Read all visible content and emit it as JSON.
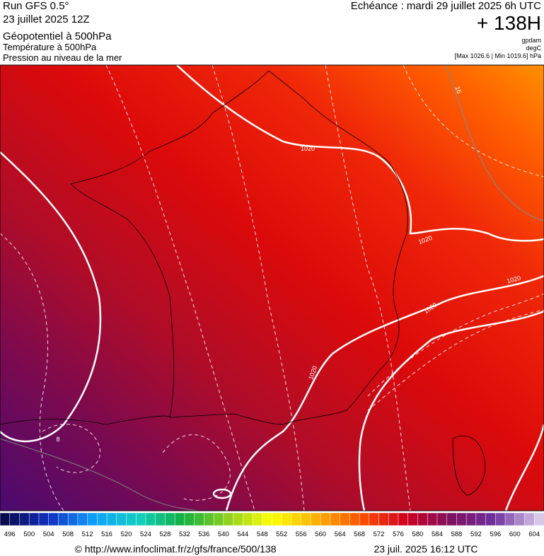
{
  "header": {
    "left": [
      "Run GFS 0.5°",
      "23 juillet 2025 12Z",
      "Géopotentiel à 500hPa",
      "Température à 500hPa",
      "Pression au niveau de la mer"
    ],
    "right": [
      "Echéance : mardi 29 juillet 2025 6h UTC",
      "+ 138H",
      "gpdam",
      "degC",
      "[Max 1026.6 | Min 1019.6] hPa"
    ]
  },
  "map": {
    "contour_labels": [
      "1020",
      "1020",
      "1020",
      "1020",
      "1020",
      "16",
      "8"
    ]
  },
  "colorbar": {
    "labels": [
      496,
      500,
      504,
      508,
      512,
      516,
      520,
      524,
      528,
      532,
      536,
      540,
      544,
      548,
      552,
      556,
      560,
      564,
      568,
      572,
      576,
      580,
      584,
      588,
      592,
      596,
      600,
      604
    ],
    "stops": [
      "#0a0a50",
      "#1030c0",
      "#10a0ff",
      "#10d0c0",
      "#10b040",
      "#90d020",
      "#ffff00",
      "#ffb000",
      "#ff5000",
      "#d00020",
      "#801060",
      "#7030a0",
      "#d8c8e8"
    ]
  },
  "footer": {
    "source": "© http://www.infoclimat.fr/z/gfs/france/500/138",
    "date": "23 juil. 2025 16:12 UTC"
  }
}
